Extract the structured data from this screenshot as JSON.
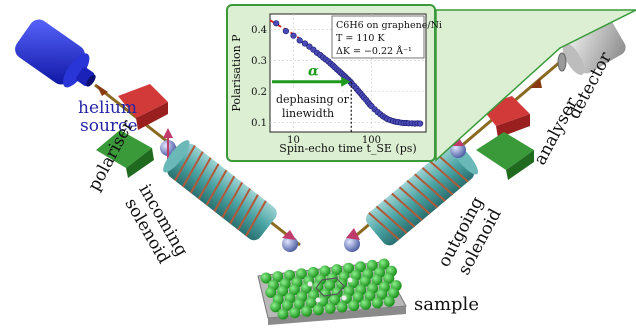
{
  "labels": {
    "helium_source_line1": "helium",
    "helium_source_line2": "source",
    "polariser": "polariser",
    "incoming_solenoid_line1": "incoming",
    "incoming_solenoid_line2": "solenoid",
    "outgoing_solenoid_line1": "outgoing",
    "outgoing_solenoid_line2": "solenoid",
    "analyser": "analyser",
    "detector": "detector",
    "sample": "sample"
  },
  "colors": {
    "source_blue": "#1f2ad1",
    "label_blue": "#2626a8",
    "solenoid": "#4aa3a3",
    "coil": "#b05a3a",
    "magnet_red": "#d23a3a",
    "magnet_green": "#3a9a3a",
    "beam": "#8a6a20",
    "inset_bg": "#dcefd2",
    "inset_border": "#3a9a3a",
    "fit_line": "#d81e1e",
    "points": "#4a4ab8",
    "alpha_arrow": "#1f9a1f",
    "sample_atoms": "#2fae2f"
  },
  "chart_data": {
    "type": "scatter",
    "xscale": "log",
    "xlim": [
      5,
      500
    ],
    "ylim": [
      0.07,
      0.45
    ],
    "xticks": [
      10,
      100
    ],
    "xtick_labels": [
      "10",
      "100"
    ],
    "yticks": [
      0.1,
      0.2,
      0.3,
      0.4
    ],
    "ytick_labels": [
      "0.1",
      "0.2",
      "0.3",
      "0.4"
    ],
    "xlabel": "Spin-echo time t_SE (ps)",
    "ylabel": "Polarisation P",
    "annotation_lines": [
      "C6H6 on graphene/Ni",
      "T = 110 K",
      "ΔK = −0.22 Å⁻¹"
    ],
    "alpha_label": "α",
    "cutoff_x": 55,
    "cutoff_label_line1": "dephasing or",
    "cutoff_label_line2": "linewidth",
    "points": {
      "x": [
        6,
        8,
        10,
        12,
        14,
        16,
        18,
        20,
        22,
        24,
        26,
        28,
        30,
        32,
        34,
        36,
        38,
        40,
        42,
        44,
        46,
        48,
        50,
        52,
        54,
        56,
        60,
        64,
        68,
        72,
        76,
        80,
        85,
        90,
        95,
        100,
        110,
        120,
        130,
        140,
        150,
        160,
        175,
        190,
        205,
        220,
        240,
        260,
        280,
        300,
        330,
        360,
        390,
        420
      ],
      "y": [
        0.42,
        0.395,
        0.38,
        0.365,
        0.355,
        0.345,
        0.335,
        0.325,
        0.318,
        0.31,
        0.303,
        0.297,
        0.29,
        0.284,
        0.278,
        0.272,
        0.267,
        0.262,
        0.257,
        0.252,
        0.248,
        0.243,
        0.239,
        0.235,
        0.231,
        0.226,
        0.218,
        0.21,
        0.202,
        0.195,
        0.188,
        0.181,
        0.174,
        0.166,
        0.159,
        0.153,
        0.143,
        0.134,
        0.127,
        0.121,
        0.116,
        0.112,
        0.108,
        0.105,
        0.103,
        0.102,
        0.1,
        0.099,
        0.099,
        0.098,
        0.098,
        0.097,
        0.098,
        0.097
      ]
    },
    "fit": {
      "x": [
        5,
        10,
        20,
        30,
        40,
        50,
        60,
        80,
        100,
        130,
        160,
        200,
        260,
        320,
        400,
        450
      ],
      "y": [
        0.43,
        0.385,
        0.33,
        0.293,
        0.264,
        0.24,
        0.22,
        0.184,
        0.155,
        0.128,
        0.113,
        0.104,
        0.099,
        0.098,
        0.097,
        0.097
      ]
    }
  }
}
